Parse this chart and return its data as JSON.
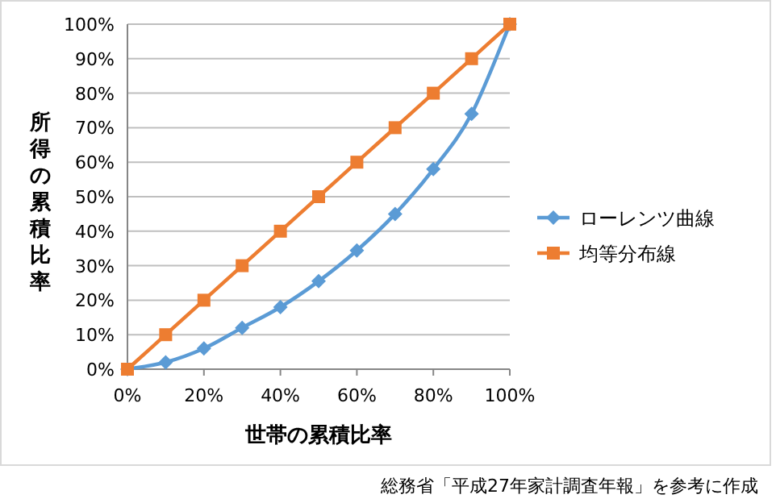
{
  "chart_data": {
    "type": "line",
    "xlabel": "世帯の累積比率",
    "ylabel": "所得の累積比率",
    "x": [
      0,
      10,
      20,
      30,
      40,
      50,
      60,
      70,
      80,
      90,
      100
    ],
    "series": [
      {
        "name": "ローレンツ曲線",
        "color": "#5b9bd5",
        "marker": "diamond",
        "values": [
          0,
          2,
          6,
          12,
          18,
          25.5,
          34.4,
          45,
          58,
          74,
          100
        ]
      },
      {
        "name": "均等分布線",
        "color": "#ed7d31",
        "marker": "square",
        "values": [
          0,
          10,
          20,
          30,
          40,
          50,
          60,
          70,
          80,
          90,
          100
        ]
      }
    ],
    "xlim": [
      0,
      100
    ],
    "ylim": [
      0,
      100
    ],
    "xticks": [
      {
        "value": 0,
        "label": "0%"
      },
      {
        "value": 20,
        "label": "20%"
      },
      {
        "value": 40,
        "label": "40%"
      },
      {
        "value": 60,
        "label": "60%"
      },
      {
        "value": 80,
        "label": "80%"
      },
      {
        "value": 100,
        "label": "100%"
      }
    ],
    "yticks": [
      {
        "value": 0,
        "label": "0%"
      },
      {
        "value": 10,
        "label": "10%"
      },
      {
        "value": 20,
        "label": "20%"
      },
      {
        "value": 30,
        "label": "30%"
      },
      {
        "value": 40,
        "label": "40%"
      },
      {
        "value": 50,
        "label": "50%"
      },
      {
        "value": 60,
        "label": "60%"
      },
      {
        "value": 70,
        "label": "70%"
      },
      {
        "value": 80,
        "label": "80%"
      },
      {
        "value": 90,
        "label": "90%"
      },
      {
        "value": 100,
        "label": "100%"
      }
    ],
    "grid": "y",
    "legend": "right",
    "line_style": "solid",
    "annotations": [
      "総務省「平成27年家計調査年報」を参考に作成"
    ]
  }
}
